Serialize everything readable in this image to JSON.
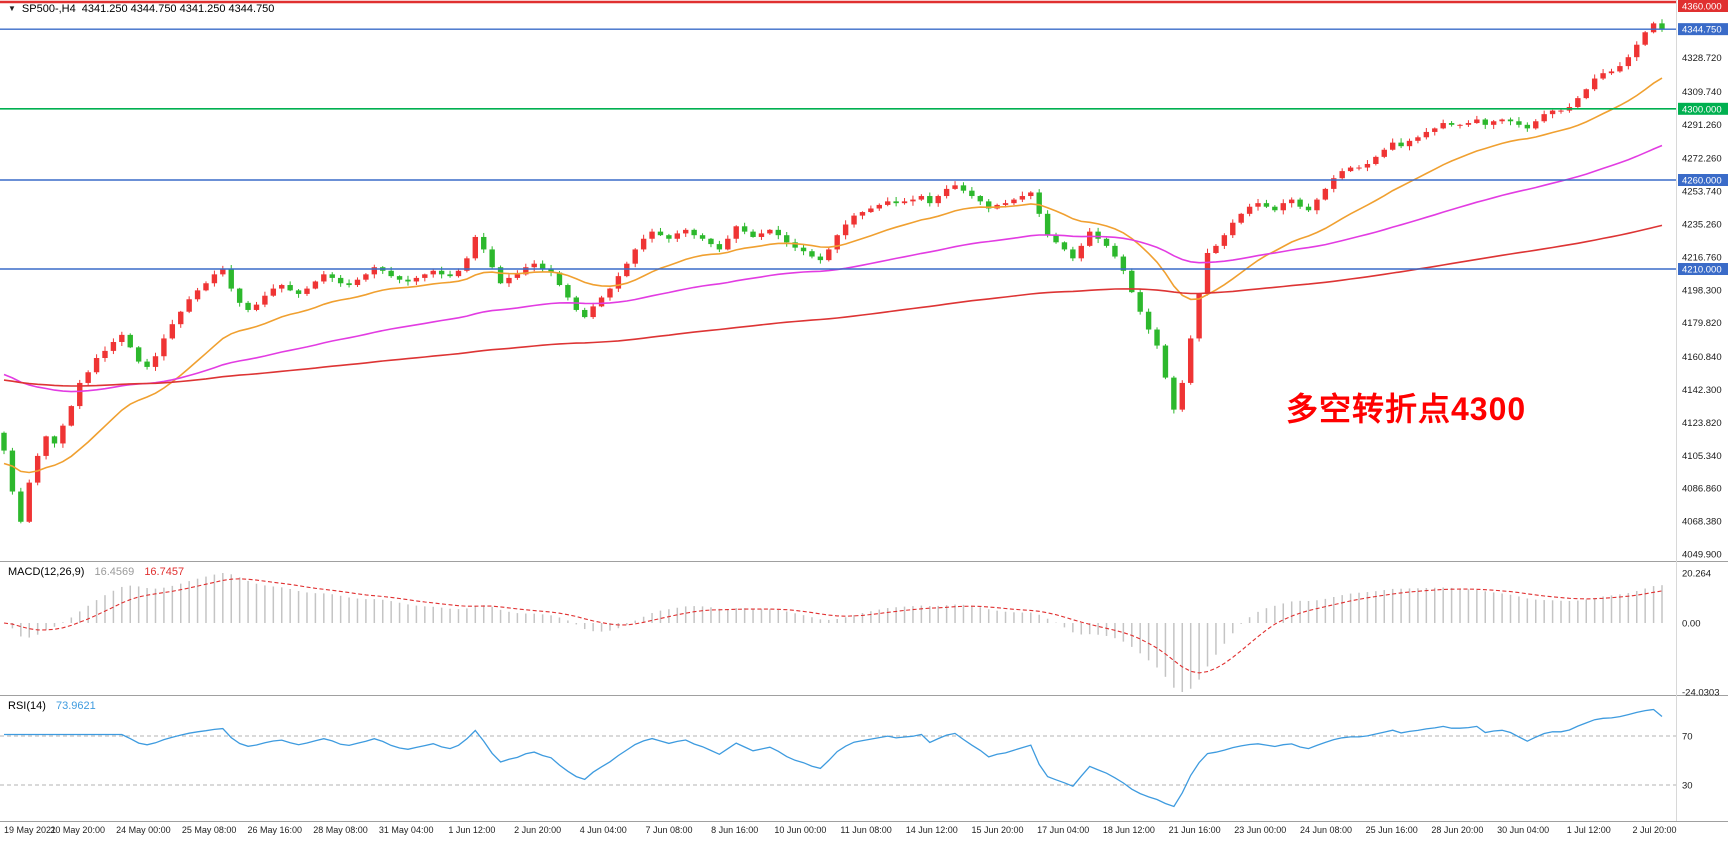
{
  "window": {
    "collapse_icon": "▼",
    "symbol_period": "SP500-,H4",
    "ohlc_line": "4341.250 4344.750 4341.250 4344.750"
  },
  "annotation": {
    "text": "多空转折点4300",
    "color": "#ff0000"
  },
  "indicators": {
    "macd": {
      "label": "MACD(12,26,9)",
      "value_main": "16.4569",
      "value_signal": "16.7457",
      "axis_max": "20.264",
      "axis_zero": "0.00",
      "axis_min": "-24.0303"
    },
    "rsi": {
      "label": "RSI(14)",
      "value": "73.9621",
      "axis_upper": "70",
      "axis_lower": "30"
    }
  },
  "price_axis": {
    "gridline_labels": [
      "4328.720",
      "4309.740",
      "4291.260",
      "4272.260",
      "4253.740",
      "4235.260",
      "4216.760",
      "4198.300",
      "4179.820",
      "4160.840",
      "4142.300",
      "4123.820",
      "4105.340",
      "4086.860",
      "4068.380",
      "4049.900"
    ]
  },
  "time_axis": {
    "labels": [
      "19 May 2021",
      "20 May 20:00",
      "24 May 00:00",
      "25 May 08:00",
      "26 May 16:00",
      "28 May 08:00",
      "31 May 04:00",
      "1 Jun 12:00",
      "2 Jun 20:00",
      "4 Jun 04:00",
      "7 Jun 08:00",
      "8 Jun 16:00",
      "10 Jun 00:00",
      "11 Jun 08:00",
      "14 Jun 12:00",
      "15 Jun 20:00",
      "17 Jun 04:00",
      "18 Jun 12:00",
      "21 Jun 16:00",
      "23 Jun 00:00",
      "24 Jun 08:00",
      "25 Jun 16:00",
      "28 Jun 20:00",
      "30 Jun 04:00",
      "1 Jul 12:00",
      "2 Jul 20:00"
    ]
  },
  "colors": {
    "candle_up": "#ef3434",
    "candle_down": "#2db82d",
    "ma_fast": "#f0a030",
    "ma_mid": "#e23ce2",
    "ma_slow": "#dd3434",
    "level_blue": "#3a6bc8",
    "level_green": "#00b050",
    "level_red": "#e03030",
    "macd_hist": "#c4c4c4",
    "macd_hist_value": "#9a9a9a",
    "macd_signal": "#e03030",
    "rsi_line": "#3e9bdf",
    "rsi_level_line": "#b3b3b3",
    "axis_text": "#1a1a1a",
    "separator": "#a0a0a0"
  },
  "chart_data": {
    "type": "candlestick",
    "symbol": "SP500-",
    "timeframe": "H4",
    "title": "SP500- H4 candlestick chart with MA, MACD(12,26,9), RSI(14)",
    "current_bar": {
      "open": 4341.25,
      "high": 4344.75,
      "low": 4341.25,
      "close": 4344.75
    },
    "visible_price_range": {
      "top": 4360.0,
      "bottom": 4049.9
    },
    "first_open": 4118,
    "closes": [
      4108,
      4085,
      4068,
      4090,
      4105,
      4116,
      4112,
      4122,
      4133,
      4146,
      4152,
      4160,
      4164,
      4169,
      4173,
      4166,
      4158,
      4155,
      4161,
      4171,
      4179,
      4186,
      4193,
      4198,
      4202,
      4207,
      4210,
      4199,
      4191,
      4187,
      4190,
      4195,
      4199,
      4201,
      4198,
      4196,
      4199,
      4203,
      4207,
      4205,
      4202,
      4201,
      4204,
      4207,
      4211,
      4209,
      4206,
      4204,
      4203,
      4205,
      4207,
      4209,
      4207,
      4206,
      4209,
      4216,
      4228,
      4221,
      4211,
      4202,
      4205,
      4207,
      4211,
      4213,
      4210,
      4208,
      4201,
      4194,
      4187,
      4183,
      4189,
      4194,
      4199,
      4206,
      4213,
      4221,
      4227,
      4231,
      4229,
      4227,
      4230,
      4232,
      4229,
      4227,
      4224,
      4221,
      4227,
      4234,
      4231,
      4228,
      4230,
      4232,
      4229,
      4225,
      4222,
      4220,
      4217,
      4215,
      4221,
      4229,
      4235,
      4240,
      4242,
      4244,
      4246,
      4248,
      4247,
      4248,
      4249,
      4251,
      4247,
      4251,
      4255,
      4257,
      4254,
      4251,
      4248,
      4244,
      4246,
      4247,
      4249,
      4251,
      4253,
      4241,
      4229,
      4225,
      4221,
      4216,
      4223,
      4231,
      4227,
      4223,
      4217,
      4209,
      4197,
      4186,
      4176,
      4167,
      4149,
      4131,
      4146,
      4171,
      4196,
      4219,
      4223,
      4229,
      4236,
      4241,
      4245,
      4247,
      4245,
      4243,
      4247,
      4249,
      4245,
      4243,
      4249,
      4255,
      4261,
      4265,
      4267,
      4267,
      4269,
      4273,
      4277,
      4281,
      4279,
      4282,
      4284,
      4287,
      4289,
      4292,
      4291,
      4291,
      4292,
      4294,
      4291,
      4293,
      4294,
      4293,
      4291,
      4289,
      4293,
      4297,
      4299,
      4299,
      4301,
      4306,
      4311,
      4317,
      4320,
      4321,
      4324,
      4329,
      4336,
      4343,
      4348,
      4344.75
    ],
    "levels": [
      {
        "price": 4360.0,
        "label": "4360.000",
        "color_key": "level_red",
        "width": 2.4
      },
      {
        "price": 4344.75,
        "label": "4344.750",
        "color_key": "level_blue",
        "width": 1.4
      },
      {
        "price": 4300.0,
        "label": "4300.000",
        "color_key": "level_green",
        "width": 1.6
      },
      {
        "price": 4260.0,
        "label": "4260.000",
        "color_key": "level_blue",
        "width": 1.4
      },
      {
        "price": 4210.0,
        "label": "4210.000",
        "color_key": "level_blue",
        "width": 1.4
      }
    ],
    "moving_averages": [
      {
        "name": "fast",
        "color_key": "ma_fast",
        "alpha": 0.095,
        "init": 4100
      },
      {
        "name": "mid",
        "color_key": "ma_mid",
        "alpha": 0.029,
        "init": 4152
      },
      {
        "name": "slow",
        "color_key": "ma_slow",
        "alpha": 0.00995,
        "init": 4148
      }
    ],
    "macd": {
      "fast": 12,
      "slow": 26,
      "signal": 9,
      "current_main": 16.4569,
      "current_signal": 16.7457,
      "axis_max": 20.264,
      "axis_min": -24.0303
    },
    "rsi": {
      "period": 14,
      "current": 73.9621,
      "overbought": 70,
      "oversold": 30
    }
  }
}
